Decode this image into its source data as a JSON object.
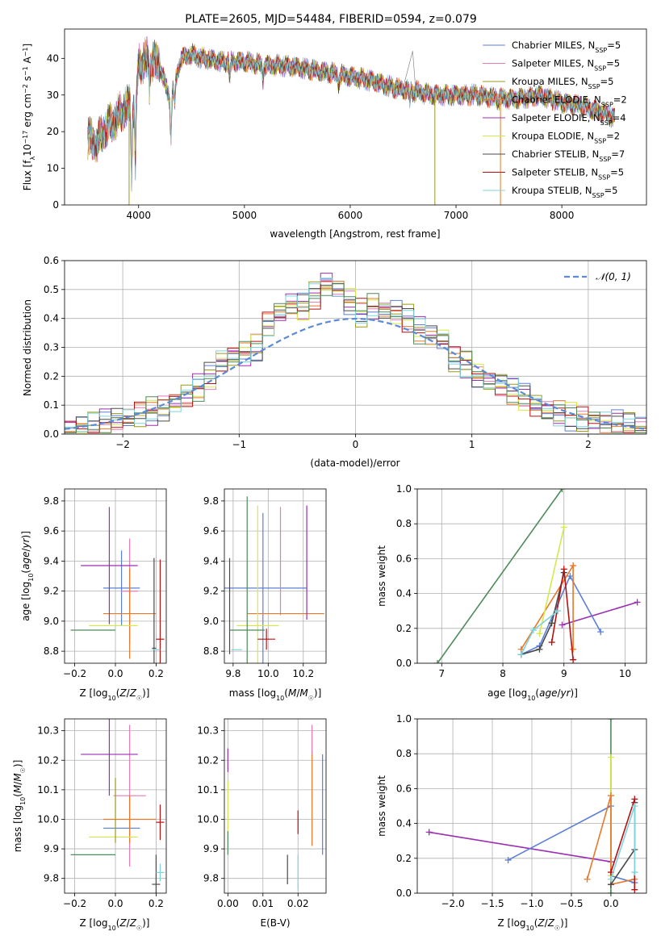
{
  "figure_title": "PLATE=2605, MJD=54484, FIBERID=0594, z=0.079",
  "colors": {
    "Chabrier MILES": "#5b7fd6",
    "Salpeter MILES": "#e47ab8",
    "Kroupa MILES": "#9a9a1a",
    "Chabrier ELODIE": "#e8782a",
    "Salpeter ELODIE": "#9a2fb0",
    "Kroupa ELODIE": "#d5e84a",
    "Chabrier STELIB": "#4a4a4a",
    "Salpeter STELIB": "#b81010",
    "Kroupa STELIB": "#7cd4dc",
    "gauss": "#5b8ad6",
    "green": "#4f8a5a"
  },
  "chart_data": [
    {
      "type": "line",
      "title": "PLATE=2605, MJD=54484, FIBERID=0594, z=0.079",
      "xlabel": "wavelength [Angstrom, rest frame]",
      "ylabel": "Flux [fλ10⁻¹⁷ erg cm⁻² s⁻¹ A⁻¹]",
      "xlim": [
        3300,
        8800
      ],
      "ylim": [
        0,
        48
      ],
      "xticks": [
        4000,
        5000,
        6000,
        7000,
        8000
      ],
      "yticks": [
        0,
        10,
        20,
        30,
        40
      ],
      "legend_position": "top-right",
      "legend": [
        "Chabrier MILES, N_SSP=5",
        "Salpeter MILES, N_SSP=5",
        "Kroupa MILES, N_SSP=5",
        "Chabrier ELODIE, N_SSP=2",
        "Salpeter ELODIE, N_SSP=4",
        "Kroupa ELODIE, N_SSP=2",
        "Chabrier STELIB, N_SSP=7",
        "Salpeter STELIB, N_SSP=5",
        "Kroupa STELIB, N_SSP=5"
      ],
      "continuum_anchor_points": {
        "x": [
          3520,
          3600,
          3700,
          3800,
          3900,
          3970,
          4000,
          4100,
          4200,
          4300,
          4400,
          4500,
          4600,
          4800,
          5000,
          5200,
          5400,
          5600,
          5800,
          6000,
          6200,
          6400,
          6600,
          6800,
          7000,
          7200,
          7400,
          7600,
          7800,
          8000,
          8200,
          8400,
          8500
        ],
        "y": [
          18,
          17,
          21,
          24,
          27,
          26,
          38,
          40,
          38,
          28,
          40,
          41,
          40,
          39,
          39,
          38,
          38,
          37,
          36,
          35,
          34,
          32,
          31,
          30,
          30,
          30,
          29,
          29,
          30,
          28,
          27,
          25,
          24
        ]
      }
    },
    {
      "type": "line",
      "xlabel": "(data-model)/error",
      "ylabel": "Normed distribution",
      "xlim": [
        -2.5,
        2.5
      ],
      "ylim": [
        0,
        0.6
      ],
      "xticks": [
        -2,
        -1,
        0,
        1,
        2
      ],
      "yticks": [
        0.0,
        0.1,
        0.2,
        0.3,
        0.4,
        0.5,
        0.6
      ],
      "grid": true,
      "legend": [
        "𝒩(0, 1)"
      ],
      "legend_position": "top-right",
      "histogram_bin_width": 0.1,
      "histogram_centers": [
        -2.45,
        -2.35,
        -2.25,
        -2.15,
        -2.05,
        -1.95,
        -1.85,
        -1.75,
        -1.65,
        -1.55,
        -1.45,
        -1.35,
        -1.25,
        -1.15,
        -1.05,
        -0.95,
        -0.85,
        -0.75,
        -0.65,
        -0.55,
        -0.45,
        -0.35,
        -0.25,
        -0.15,
        -0.05,
        0.05,
        0.15,
        0.25,
        0.35,
        0.45,
        0.55,
        0.65,
        0.75,
        0.85,
        0.95,
        1.05,
        1.15,
        1.25,
        1.35,
        1.45,
        1.55,
        1.65,
        1.75,
        1.85,
        1.95,
        2.05,
        2.15,
        2.25,
        2.35,
        2.45
      ],
      "histogram_base_values": [
        0.02,
        0.025,
        0.03,
        0.04,
        0.05,
        0.06,
        0.07,
        0.08,
        0.09,
        0.11,
        0.13,
        0.16,
        0.2,
        0.25,
        0.27,
        0.28,
        0.3,
        0.38,
        0.42,
        0.45,
        0.44,
        0.48,
        0.52,
        0.5,
        0.46,
        0.42,
        0.44,
        0.43,
        0.42,
        0.4,
        0.36,
        0.34,
        0.33,
        0.26,
        0.24,
        0.2,
        0.18,
        0.17,
        0.15,
        0.13,
        0.1,
        0.08,
        0.07,
        0.06,
        0.05,
        0.045,
        0.04,
        0.035,
        0.03,
        0.025
      ]
    },
    {
      "type": "scatter",
      "xlabel": "Z [log10(Z/Z☉)]",
      "ylabel": "age [log10(age/yr)]",
      "xlim": [
        -0.25,
        0.25
      ],
      "ylim": [
        8.72,
        9.88
      ],
      "xticks": [
        -0.2,
        0.0,
        0.2
      ],
      "yticks": [
        8.8,
        9.0,
        9.2,
        9.4,
        9.6,
        9.8
      ],
      "grid": true,
      "errorbars": [
        {
          "series": "Chabrier MILES",
          "x": 0.03,
          "xerr": 0.09,
          "y": 9.22,
          "yerr": 0.25
        },
        {
          "series": "Salpeter MILES",
          "x": 0.07,
          "xerr": 0.04,
          "y": 9.2,
          "yerr": 0.35
        },
        {
          "series": "Kroupa MILES",
          "x": 0.0,
          "xerr": 0.0,
          "y": 8.94,
          "yerr": 0.0
        },
        {
          "series": "Chabrier ELODIE",
          "x": 0.07,
          "xerr": 0.13,
          "y": 9.05,
          "yerr": 0.3
        },
        {
          "series": "Salpeter ELODIE",
          "x": -0.03,
          "xerr": 0.14,
          "y": 9.37,
          "yerr": 0.39
        },
        {
          "series": "Kroupa ELODIE",
          "x": -0.01,
          "xerr": 0.12,
          "y": 8.97,
          "yerr": 0.0
        },
        {
          "series": "Chabrier STELIB",
          "x": 0.19,
          "xerr": 0.01,
          "y": 8.82,
          "yerr": 0.6
        },
        {
          "series": "Salpeter STELIB",
          "x": 0.22,
          "xerr": 0.02,
          "y": 8.88,
          "yerr": 0.53
        },
        {
          "series": "Kroupa STELIB",
          "x": 0.2,
          "xerr": 0.02,
          "y": 8.81,
          "yerr": 0.0
        },
        {
          "series": "green",
          "x": -0.11,
          "xerr": 0.11,
          "y": 8.94,
          "yerr": 0.0
        }
      ]
    },
    {
      "type": "scatter",
      "xlabel": "mass [log10(M/M☉)]",
      "xlim": [
        9.75,
        10.33
      ],
      "ylim": [
        8.72,
        9.88
      ],
      "xticks": [
        9.8,
        10.0,
        10.2
      ],
      "yticks": [
        8.8,
        9.0,
        9.2,
        9.4,
        9.6,
        9.8
      ],
      "grid": true,
      "errorbars": [
        {
          "series": "Chabrier MILES",
          "x": 9.97,
          "xerr": 0.25,
          "y": 9.22,
          "yerr": 0.5
        },
        {
          "series": "Salpeter MILES",
          "x": 10.07,
          "xerr": 0.0,
          "y": 9.4,
          "yerr": 0.36
        },
        {
          "series": "Chabrier ELODIE",
          "x": 10.1,
          "xerr": 0.22,
          "y": 9.05,
          "yerr": 0.0
        },
        {
          "series": "Salpeter ELODIE",
          "x": 10.22,
          "xerr": 0.0,
          "y": 9.39,
          "yerr": 0.38
        },
        {
          "series": "Kroupa ELODIE",
          "x": 9.94,
          "xerr": 0.12,
          "y": 8.97,
          "yerr": 0.8
        },
        {
          "series": "Chabrier STELIB",
          "x": 9.78,
          "xerr": 0.0,
          "y": 9.1,
          "yerr": 0.32
        },
        {
          "series": "Salpeter STELIB",
          "x": 9.99,
          "xerr": 0.05,
          "y": 8.88,
          "yerr": 0.07
        },
        {
          "series": "Kroupa STELIB",
          "x": 9.82,
          "xerr": 0.03,
          "y": 8.81,
          "yerr": 0.0
        },
        {
          "series": "green",
          "x": 9.88,
          "xerr": 0.1,
          "y": 8.94,
          "yerr": 0.89
        }
      ]
    },
    {
      "type": "line",
      "xlabel": "age [log10(age/yr)]",
      "ylabel": "mass weight",
      "xlim": [
        6.6,
        10.35
      ],
      "ylim": [
        0,
        1
      ],
      "xticks": [
        7,
        8,
        9,
        10
      ],
      "yticks": [
        0.0,
        0.2,
        0.4,
        0.6,
        0.8,
        1.0
      ],
      "grid": true,
      "series": [
        {
          "series": "green",
          "x": [
            6.93,
            8.97
          ],
          "y": [
            0.0,
            1.0
          ]
        },
        {
          "series": "Salpeter ELODIE",
          "x": [
            8.97,
            10.2
          ],
          "y": [
            0.22,
            0.35
          ]
        },
        {
          "series": "Chabrier MILES",
          "x": [
            8.3,
            8.6,
            9.1,
            9.6
          ],
          "y": [
            0.05,
            0.1,
            0.5,
            0.18
          ]
        },
        {
          "series": "Chabrier ELODIE",
          "x": [
            8.3,
            9.15,
            9.15
          ],
          "y": [
            0.08,
            0.56,
            0.08
          ]
        },
        {
          "series": "Kroupa ELODIE",
          "x": [
            8.6,
            9.0
          ],
          "y": [
            0.17,
            0.78
          ]
        },
        {
          "series": "Chabrier STELIB",
          "x": [
            8.3,
            8.6,
            8.8,
            9.0
          ],
          "y": [
            0.05,
            0.08,
            0.23,
            0.52
          ]
        },
        {
          "series": "Salpeter STELIB",
          "x": [
            8.8,
            9.0,
            9.15
          ],
          "y": [
            0.12,
            0.54,
            0.02
          ]
        },
        {
          "series": "Kroupa STELIB",
          "x": [
            8.3,
            8.5,
            8.9
          ],
          "y": [
            0.05,
            0.19,
            0.3
          ]
        }
      ]
    },
    {
      "type": "scatter",
      "xlabel": "Z [log10(Z/Z☉)]",
      "ylabel": "mass [log10(M/M☉)]",
      "xlim": [
        -0.25,
        0.25
      ],
      "ylim": [
        9.75,
        10.34
      ],
      "xticks": [
        -0.2,
        0.0,
        0.2
      ],
      "yticks": [
        9.8,
        9.9,
        10.0,
        10.1,
        10.2,
        10.3
      ],
      "grid": true,
      "errorbars": [
        {
          "series": "Chabrier MILES",
          "x": 0.03,
          "xerr": 0.09,
          "y": 9.97,
          "yerr": 0.0
        },
        {
          "series": "Salpeter MILES",
          "x": 0.07,
          "xerr": 0.08,
          "y": 10.08,
          "yerr": 0.24
        },
        {
          "series": "Chabrier ELODIE",
          "x": 0.07,
          "xerr": 0.13,
          "y": 10.0,
          "yerr": 0.08
        },
        {
          "series": "Salpeter ELODIE",
          "x": -0.03,
          "xerr": 0.14,
          "y": 10.22,
          "yerr": 0.14
        },
        {
          "series": "Kroupa ELODIE",
          "x": -0.01,
          "xerr": 0.12,
          "y": 9.94,
          "yerr": 0.0
        },
        {
          "series": "Kroupa MILES",
          "x": 0.0,
          "xerr": 0.0,
          "y": 10.03,
          "yerr": 0.11
        },
        {
          "series": "Chabrier STELIB",
          "x": 0.2,
          "xerr": 0.02,
          "y": 9.78,
          "yerr": 0.1
        },
        {
          "series": "Salpeter STELIB",
          "x": 0.22,
          "xerr": 0.02,
          "y": 9.99,
          "yerr": 0.06
        },
        {
          "series": "Kroupa STELIB",
          "x": 0.22,
          "xerr": 0.02,
          "y": 9.82,
          "yerr": 0.03
        },
        {
          "series": "green",
          "x": -0.11,
          "xerr": 0.11,
          "y": 9.88,
          "yerr": 0.0
        }
      ]
    },
    {
      "type": "scatter",
      "xlabel": "E(B-V)",
      "xlim": [
        -0.001,
        0.028
      ],
      "ylim": [
        9.75,
        10.34
      ],
      "xticks": [
        0.0,
        0.01,
        0.02
      ],
      "yticks": [
        9.8,
        9.9,
        10.0,
        10.1,
        10.2,
        10.3
      ],
      "grid": true,
      "errorbars": [
        {
          "series": "Salpeter ELODIE",
          "x": 0.0,
          "y": 10.2,
          "yerr": 0.04
        },
        {
          "series": "Kroupa ELODIE",
          "x": 0.0,
          "y": 10.03,
          "yerr": 0.1
        },
        {
          "series": "green",
          "x": 0.0,
          "y": 9.92,
          "yerr": 0.04
        },
        {
          "series": "Chabrier STELIB",
          "x": 0.017,
          "y": 9.83,
          "yerr": 0.05
        },
        {
          "series": "Salpeter STELIB",
          "x": 0.02,
          "y": 9.99,
          "yerr": 0.04
        },
        {
          "series": "Kroupa STELIB",
          "x": 0.02,
          "y": 9.82,
          "yerr": 0.06
        },
        {
          "series": "Chabrier ELODIE",
          "x": 0.024,
          "y": 10.07,
          "yerr": 0.16
        },
        {
          "series": "Salpeter MILES",
          "x": 0.024,
          "y": 10.27,
          "yerr": 0.05
        },
        {
          "series": "Chabrier MILES",
          "x": 0.027,
          "y": 10.05,
          "yerr": 0.17
        }
      ]
    },
    {
      "type": "line",
      "xlabel": "Z [log10(Z/Z☉)]",
      "ylabel": "mass weight",
      "xlim": [
        -2.45,
        0.45
      ],
      "ylim": [
        0,
        1
      ],
      "xticks": [
        -2.0,
        -1.5,
        -1.0,
        -0.5,
        0.0
      ],
      "yticks": [
        0.0,
        0.2,
        0.4,
        0.6,
        0.8,
        1.0
      ],
      "grid": true,
      "series": [
        {
          "series": "Salpeter ELODIE",
          "x": [
            -2.3,
            0.0
          ],
          "y": [
            0.35,
            0.18
          ]
        },
        {
          "series": "Chabrier MILES",
          "x": [
            -1.3,
            0.0,
            0.0,
            0.3
          ],
          "y": [
            0.19,
            0.5,
            0.1,
            0.06
          ]
        },
        {
          "series": "green",
          "x": [
            0.0,
            0.0
          ],
          "y": [
            0.0,
            1.0
          ]
        },
        {
          "series": "Kroupa ELODIE",
          "x": [
            0.0,
            0.0
          ],
          "y": [
            0.1,
            0.78
          ]
        },
        {
          "series": "Chabrier ELODIE",
          "x": [
            -0.3,
            0.0,
            0.0,
            0.3
          ],
          "y": [
            0.08,
            0.56,
            0.05,
            0.08
          ]
        },
        {
          "series": "Chabrier STELIB",
          "x": [
            0.0,
            0.3,
            0.3
          ],
          "y": [
            0.05,
            0.25,
            0.52
          ]
        },
        {
          "series": "Salpeter STELIB",
          "x": [
            0.0,
            0.3,
            0.3
          ],
          "y": [
            0.12,
            0.54,
            0.02
          ]
        },
        {
          "series": "Kroupa STELIB",
          "x": [
            0.0,
            0.3,
            0.3
          ],
          "y": [
            0.08,
            0.5,
            0.12
          ]
        }
      ]
    }
  ]
}
